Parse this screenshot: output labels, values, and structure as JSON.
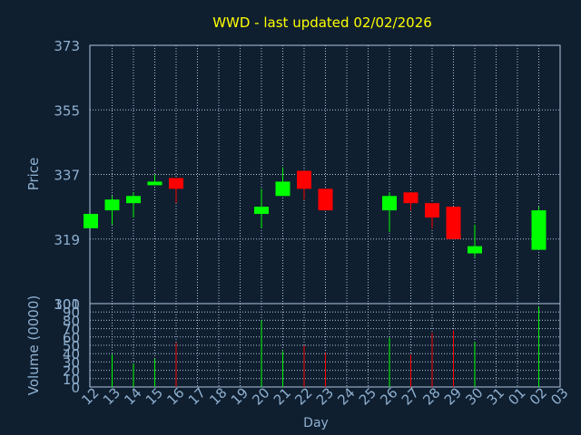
{
  "chart_data": [
    {
      "type": "candlestick",
      "title": "WWD - last updated 02/02/2026",
      "ylabel": "Price",
      "ylim": [
        301,
        373
      ],
      "yticks": [
        373,
        355,
        337,
        319,
        301
      ],
      "grid": true,
      "x_ticks": [
        "12",
        "13",
        "14",
        "15",
        "16",
        "17",
        "18",
        "19",
        "20",
        "21",
        "22",
        "23",
        "24",
        "25",
        "26",
        "27",
        "28",
        "29",
        "30",
        "31",
        "01",
        "02",
        "03"
      ],
      "candles": [
        {
          "day": "12",
          "open": 322,
          "close": 326,
          "high": 326,
          "low": 322
        },
        {
          "day": "13",
          "open": 327,
          "close": 330,
          "high": 331,
          "low": 323
        },
        {
          "day": "14",
          "open": 329,
          "close": 331,
          "high": 332,
          "low": 325
        },
        {
          "day": "15",
          "open": 334,
          "close": 335,
          "high": 337,
          "low": 334
        },
        {
          "day": "16",
          "open": 336,
          "close": 333,
          "high": 336,
          "low": 329
        },
        {
          "day": "20",
          "open": 326,
          "close": 328,
          "high": 333,
          "low": 322
        },
        {
          "day": "21",
          "open": 331,
          "close": 335,
          "high": 339,
          "low": 331
        },
        {
          "day": "22",
          "open": 338,
          "close": 333,
          "high": 338,
          "low": 330
        },
        {
          "day": "23",
          "open": 333,
          "close": 327,
          "high": 333,
          "low": 327
        },
        {
          "day": "26",
          "open": 327,
          "close": 331,
          "high": 332,
          "low": 321
        },
        {
          "day": "27",
          "open": 332,
          "close": 329,
          "high": 332,
          "low": 327
        },
        {
          "day": "28",
          "open": 329,
          "close": 325,
          "high": 329,
          "low": 322
        },
        {
          "day": "29",
          "open": 328,
          "close": 319,
          "high": 328,
          "low": 319
        },
        {
          "day": "30",
          "open": 315,
          "close": 317,
          "high": 323,
          "low": 314
        },
        {
          "day": "02",
          "open": 316,
          "close": 327,
          "high": 328,
          "low": 316
        }
      ]
    },
    {
      "type": "bar",
      "ylabel": "Volume (0000)",
      "xlabel": "Day",
      "ylim": [
        0,
        100
      ],
      "yticks": [
        100,
        90,
        80,
        70,
        60,
        50,
        40,
        30,
        20,
        10,
        0
      ],
      "grid": true,
      "bars": [
        {
          "day": "13",
          "value": 39,
          "direction": "up"
        },
        {
          "day": "14",
          "value": 28,
          "direction": "up"
        },
        {
          "day": "15",
          "value": 34,
          "direction": "up"
        },
        {
          "day": "16",
          "value": 53,
          "direction": "down"
        },
        {
          "day": "20",
          "value": 80,
          "direction": "up"
        },
        {
          "day": "21",
          "value": 43,
          "direction": "up"
        },
        {
          "day": "22",
          "value": 50,
          "direction": "down"
        },
        {
          "day": "23",
          "value": 41,
          "direction": "down"
        },
        {
          "day": "26",
          "value": 59,
          "direction": "up"
        },
        {
          "day": "27",
          "value": 39,
          "direction": "down"
        },
        {
          "day": "28",
          "value": 65,
          "direction": "down"
        },
        {
          "day": "29",
          "value": 68,
          "direction": "down"
        },
        {
          "day": "30",
          "value": 54,
          "direction": "up"
        },
        {
          "day": "02",
          "value": 96,
          "direction": "up"
        }
      ]
    }
  ],
  "colors": {
    "background": "#0f1f30",
    "frame": "#b0c4de",
    "grid": "#b0c4de",
    "title": "#ffff00",
    "axis_text": "#8fb0d0",
    "up": "#00ff00",
    "down": "#ff0000"
  }
}
